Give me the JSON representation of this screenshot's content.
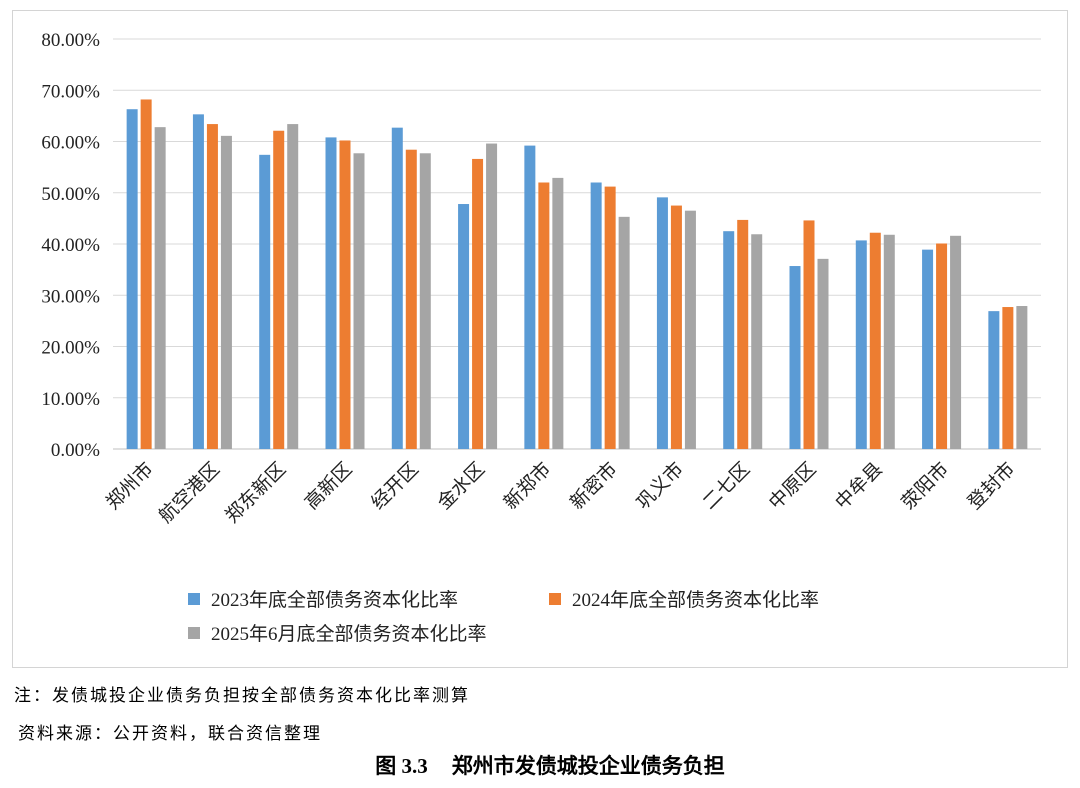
{
  "chart_data": {
    "type": "bar",
    "categories": [
      "郑州市",
      "航空港区",
      "郑东新区",
      "高新区",
      "经开区",
      "金水区",
      "新郑市",
      "新密市",
      "巩义市",
      "二七区",
      "中原区",
      "中牟县",
      "荥阳市",
      "登封市"
    ],
    "series": [
      {
        "name": "2023年底全部债务资本化比率",
        "color": "#5b9bd5",
        "values": [
          66.3,
          65.3,
          57.4,
          60.8,
          62.7,
          47.8,
          59.2,
          52.0,
          49.1,
          42.5,
          35.7,
          40.7,
          38.9,
          26.9
        ]
      },
      {
        "name": "2024年底全部债务资本化比率",
        "color": "#ed7d31",
        "values": [
          68.2,
          63.4,
          62.1,
          60.2,
          58.4,
          56.6,
          52.0,
          51.2,
          47.5,
          44.7,
          44.6,
          42.2,
          40.1,
          27.7
        ]
      },
      {
        "name": "2025年6月底全部债务资本化比率",
        "color": "#a5a5a5",
        "values": [
          62.8,
          61.1,
          63.4,
          57.7,
          57.7,
          59.6,
          52.9,
          45.3,
          46.5,
          41.9,
          37.1,
          41.8,
          41.6,
          27.9
        ]
      }
    ],
    "y_ticks": [
      "0.00%",
      "10.00%",
      "20.00%",
      "30.00%",
      "40.00%",
      "50.00%",
      "60.00%",
      "70.00%",
      "80.00%"
    ],
    "ylim": [
      0,
      80
    ],
    "grid": true,
    "legend_position": "bottom"
  },
  "notes": {
    "note": "注：发债城投企业债务负担按全部债务资本化比率测算",
    "source": "资料来源：公开资料，联合资信整理"
  },
  "caption": {
    "number": "图 3.3",
    "title": "郑州市发债城投企业债务负担"
  }
}
